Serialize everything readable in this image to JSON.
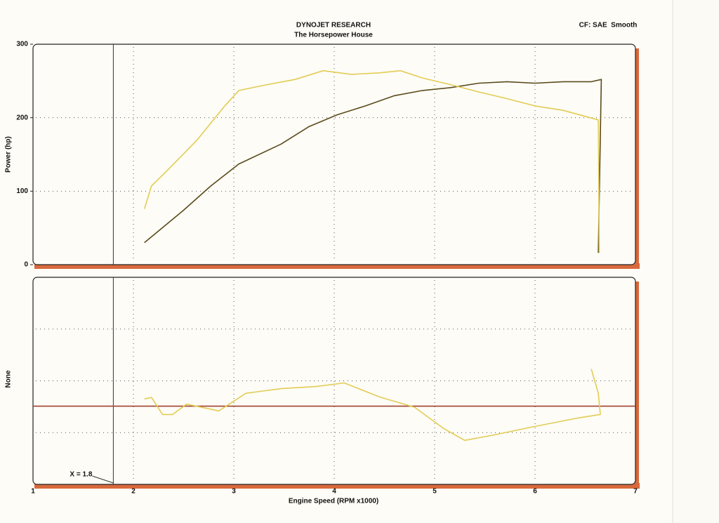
{
  "chart_data": [
    {
      "type": "line",
      "title": "DYNOJET RESEARCH",
      "subtitle": "The Horsepower House",
      "corner_note": "CF: SAE  Smooth",
      "ylabel": "Power (hp)",
      "ylim": [
        0,
        300
      ],
      "yticks": [
        0,
        100,
        200,
        300
      ],
      "xlim": [
        1,
        7
      ],
      "grid": true,
      "series": [
        {
          "color": "#5b4a1c",
          "x": [
            2.11,
            2.49,
            2.77,
            3.05,
            3.47,
            3.75,
            4.03,
            4.31,
            4.6,
            4.88,
            5.16,
            5.44,
            5.72,
            6.0,
            6.28,
            6.56,
            6.66,
            6.63
          ],
          "values": [
            30,
            73,
            107,
            137,
            164,
            188,
            204,
            216,
            230,
            237,
            241,
            247,
            249,
            247,
            249,
            249,
            252,
            16
          ]
        },
        {
          "color": "#e3cc55",
          "x": [
            2.11,
            2.18,
            2.35,
            2.63,
            2.91,
            3.05,
            3.33,
            3.61,
            3.89,
            4.17,
            4.45,
            4.66,
            4.88,
            5.16,
            5.44,
            5.72,
            6.0,
            6.28,
            6.63,
            6.64
          ],
          "values": [
            76,
            107,
            130,
            169,
            216,
            237,
            245,
            252,
            264,
            259,
            261,
            264,
            254,
            245,
            235,
            226,
            216,
            210,
            197,
            16
          ]
        }
      ]
    },
    {
      "type": "line",
      "ylabel": "None",
      "xlabel": "Engine Speed (RPM x1000)",
      "ylim": [
        0,
        4
      ],
      "xlim": [
        1,
        7
      ],
      "xticks": [
        1,
        2,
        3,
        4,
        5,
        6,
        7
      ],
      "grid": true,
      "annotation": {
        "text": "X = 1.8",
        "x": 1.8
      },
      "series": [
        {
          "color": "#a0402e",
          "x": [
            1,
            7
          ],
          "values": [
            1.51,
            1.51
          ]
        },
        {
          "color": "#e3cc55",
          "x": [
            2.11,
            2.18,
            2.29,
            2.39,
            2.53,
            2.85,
            3.12,
            3.47,
            3.82,
            4.1,
            4.45,
            4.8,
            5.09,
            5.3,
            5.58,
            6.0,
            6.42,
            6.65,
            6.63,
            6.56
          ],
          "values": [
            1.65,
            1.68,
            1.35,
            1.35,
            1.55,
            1.42,
            1.76,
            1.85,
            1.89,
            1.96,
            1.69,
            1.49,
            1.08,
            0.85,
            0.95,
            1.12,
            1.28,
            1.35,
            1.76,
            2.23
          ]
        }
      ]
    }
  ]
}
